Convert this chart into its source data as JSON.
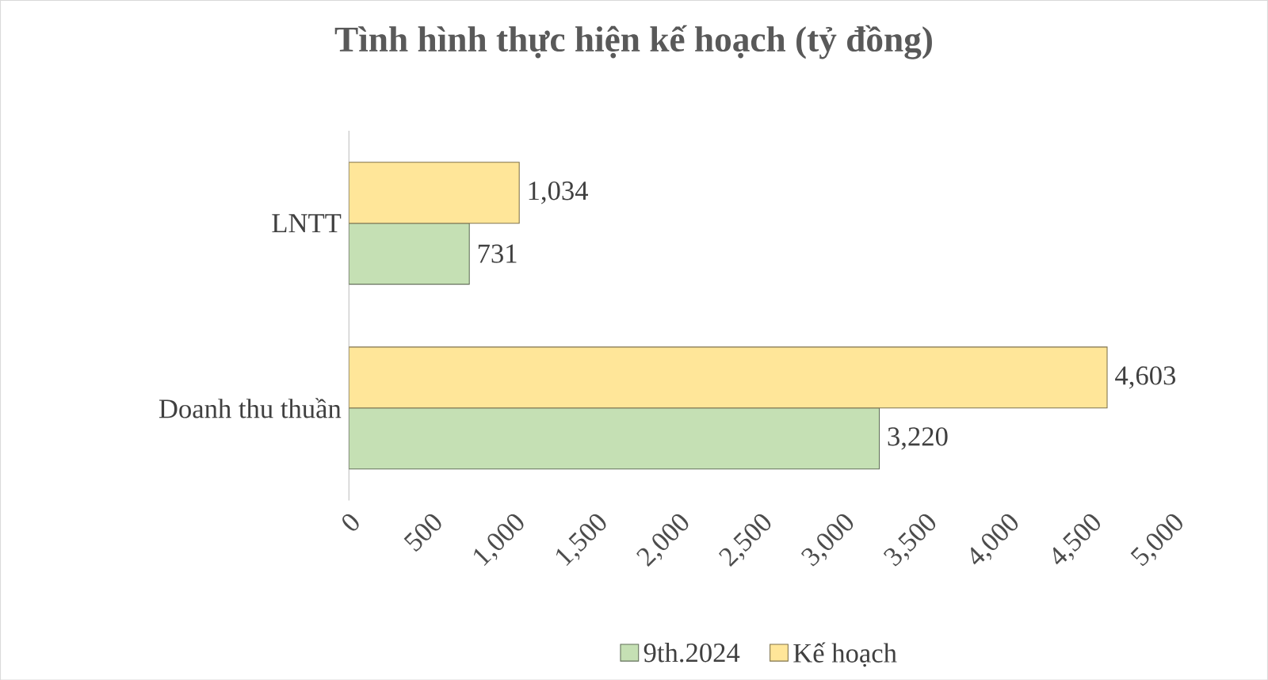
{
  "chart_data": {
    "type": "bar",
    "orientation": "horizontal",
    "title": "Tình hình thực hiện kế hoạch (tỷ đồng)",
    "categories": [
      "LNTT",
      "Doanh thu thuần"
    ],
    "series": [
      {
        "name": "9th.2024",
        "color": "#c5e0b4",
        "values": [
          731,
          3220
        ],
        "value_labels": [
          "731",
          "3,220"
        ]
      },
      {
        "name": "Kế hoạch",
        "color": "#ffe699",
        "values": [
          1034,
          4603
        ],
        "value_labels": [
          "1,034",
          "4,603"
        ]
      }
    ],
    "xlim": [
      0,
      5000
    ],
    "xticks": [
      0,
      500,
      {
        "value": 1000,
        "label": "1,000"
      },
      {
        "value": 1500,
        "label": "1,500"
      },
      {
        "value": 2000,
        "label": "2,000"
      },
      {
        "value": 2500,
        "label": "2,500"
      },
      {
        "value": 3000,
        "label": "3,000"
      },
      {
        "value": 3500,
        "label": "3,500"
      },
      {
        "value": 4000,
        "label": "4,000"
      },
      {
        "value": 4500,
        "label": "4,500"
      },
      {
        "value": 5000,
        "label": "5,000"
      }
    ],
    "legend": "bottom",
    "grid": false
  }
}
